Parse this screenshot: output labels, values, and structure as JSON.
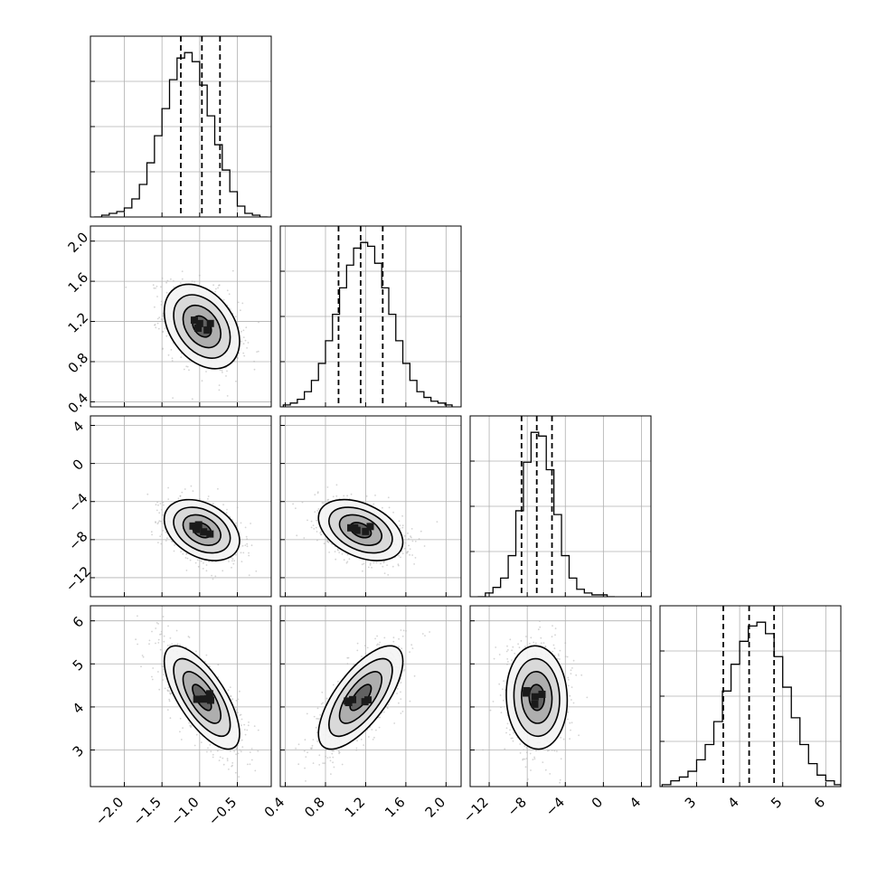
{
  "chart_data": {
    "type": "corner",
    "title": "",
    "parameters": [
      {
        "range": [
          -2.45,
          -0.05
        ],
        "ticks": [
          -2.0,
          -1.5,
          -1.0,
          -0.5
        ],
        "tick_labels": [
          "−2.0",
          "−1.5",
          "−1.0",
          "−0.5"
        ],
        "quantiles": [
          -1.25,
          -0.97,
          -0.73
        ],
        "histogram": {
          "bin_edges": [
            -2.4,
            -2.3,
            -2.2,
            -2.1,
            -2.0,
            -1.9,
            -1.8,
            -1.7,
            -1.6,
            -1.5,
            -1.4,
            -1.3,
            -1.2,
            -1.1,
            -1.0,
            -0.9,
            -0.8,
            -0.7,
            -0.6,
            -0.5,
            -0.4,
            -0.3,
            -0.2,
            -0.1
          ],
          "counts": [
            0,
            1,
            2,
            3,
            5,
            10,
            18,
            30,
            45,
            60,
            76,
            88,
            91,
            86,
            73,
            56,
            40,
            26,
            14,
            6,
            2,
            1,
            0
          ]
        },
        "mode": [
          -0.97,
          null
        ],
        "sigma": 0.25
      },
      {
        "range": [
          0.35,
          2.15
        ],
        "ticks": [
          0.4,
          0.8,
          1.2,
          1.6,
          2.0
        ],
        "tick_labels": [
          "0.4",
          "0.8",
          "1.2",
          "1.6",
          "2.0"
        ],
        "quantiles": [
          0.93,
          1.15,
          1.37
        ],
        "histogram": {
          "bin_edges": [
            0.38,
            0.45,
            0.52,
            0.59,
            0.66,
            0.73,
            0.8,
            0.87,
            0.94,
            1.01,
            1.08,
            1.15,
            1.22,
            1.29,
            1.36,
            1.43,
            1.5,
            1.57,
            1.64,
            1.71,
            1.78,
            1.85,
            1.92,
            1.99,
            2.06
          ],
          "counts": [
            1,
            2,
            4,
            8,
            14,
            23,
            35,
            49,
            63,
            75,
            84,
            87,
            85,
            76,
            63,
            49,
            35,
            23,
            14,
            8,
            5,
            3,
            2,
            1
          ]
        },
        "sigma": 0.21
      },
      {
        "range": [
          -14.0,
          5.0
        ],
        "ticks": [
          -12,
          -8,
          -4,
          0,
          4
        ],
        "tick_labels": [
          "−12",
          "−8",
          "−4",
          "0",
          "4"
        ],
        "quantiles": [
          -8.6,
          -7.0,
          -5.4
        ],
        "histogram": {
          "bin_edges": [
            -13.2,
            -12.4,
            -11.6,
            -10.8,
            -10.0,
            -9.2,
            -8.4,
            -7.6,
            -6.8,
            -6.0,
            -5.2,
            -4.4,
            -3.6,
            -2.8,
            -2.0,
            -1.2,
            -0.4,
            0.4,
            1.2
          ],
          "counts": [
            0,
            2,
            5,
            10,
            22,
            46,
            72,
            88,
            86,
            68,
            44,
            22,
            10,
            4,
            2,
            1,
            1,
            0
          ]
        },
        "sigma": 1.6
      },
      {
        "range": [
          2.15,
          6.35
        ],
        "ticks": [
          3,
          4,
          5,
          6
        ],
        "tick_labels": [
          "3",
          "4",
          "5",
          "6"
        ],
        "quantiles": [
          3.62,
          4.22,
          4.8
        ],
        "histogram": {
          "bin_edges": [
            2.2,
            2.4,
            2.6,
            2.8,
            3.0,
            3.2,
            3.4,
            3.6,
            3.8,
            4.0,
            4.2,
            4.4,
            4.6,
            4.8,
            5.0,
            5.2,
            5.4,
            5.6,
            5.8,
            6.0,
            6.2,
            6.35
          ],
          "counts": [
            1,
            3,
            5,
            8,
            14,
            22,
            34,
            50,
            64,
            76,
            84,
            86,
            80,
            68,
            52,
            36,
            22,
            12,
            6,
            3,
            1
          ]
        },
        "sigma": 0.6
      }
    ],
    "correlations": {
      "1-0": -0.35,
      "2-0": -0.35,
      "2-1": -0.4,
      "3-0": -0.7,
      "3-1": 0.7,
      "3-2": -0.05
    },
    "contour_levels_sigma": [
      0.5,
      1.0,
      1.5,
      2.0
    ],
    "grid": true,
    "line_color": "#000000",
    "point_color": "#b0b0b0"
  }
}
